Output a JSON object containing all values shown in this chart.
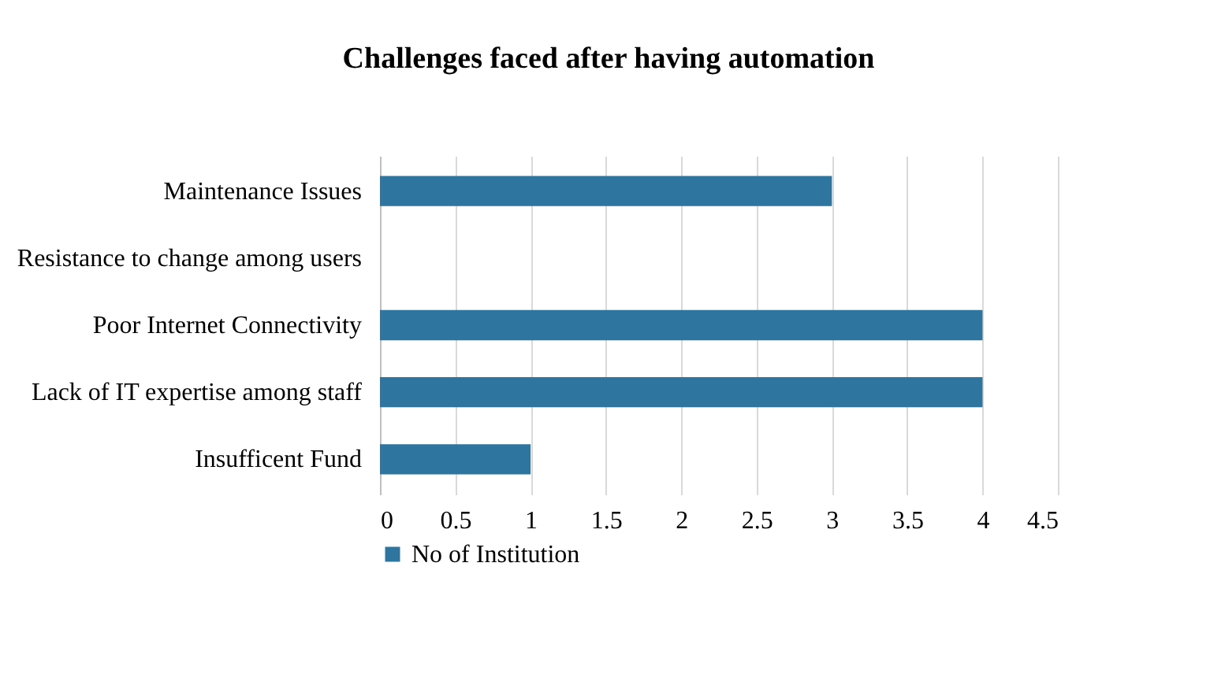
{
  "chart_data": {
    "type": "bar",
    "orientation": "horizontal",
    "title": "Challenges faced after having automation",
    "categories": [
      "Maintenance  Issues",
      "Resistance to change among users",
      "Poor Internet Connectivity",
      "Lack of IT expertise among staff",
      "Insufficent Fund"
    ],
    "series": [
      {
        "name": "No of Institution",
        "color": "#2e75a0",
        "values": [
          3,
          0,
          4,
          4,
          1
        ]
      }
    ],
    "xlim": [
      0,
      4.5
    ],
    "xticks": [
      0,
      0.5,
      1,
      1.5,
      2,
      2.5,
      3,
      3.5,
      4,
      4.5
    ],
    "grid": "x",
    "legend": "bottom"
  }
}
